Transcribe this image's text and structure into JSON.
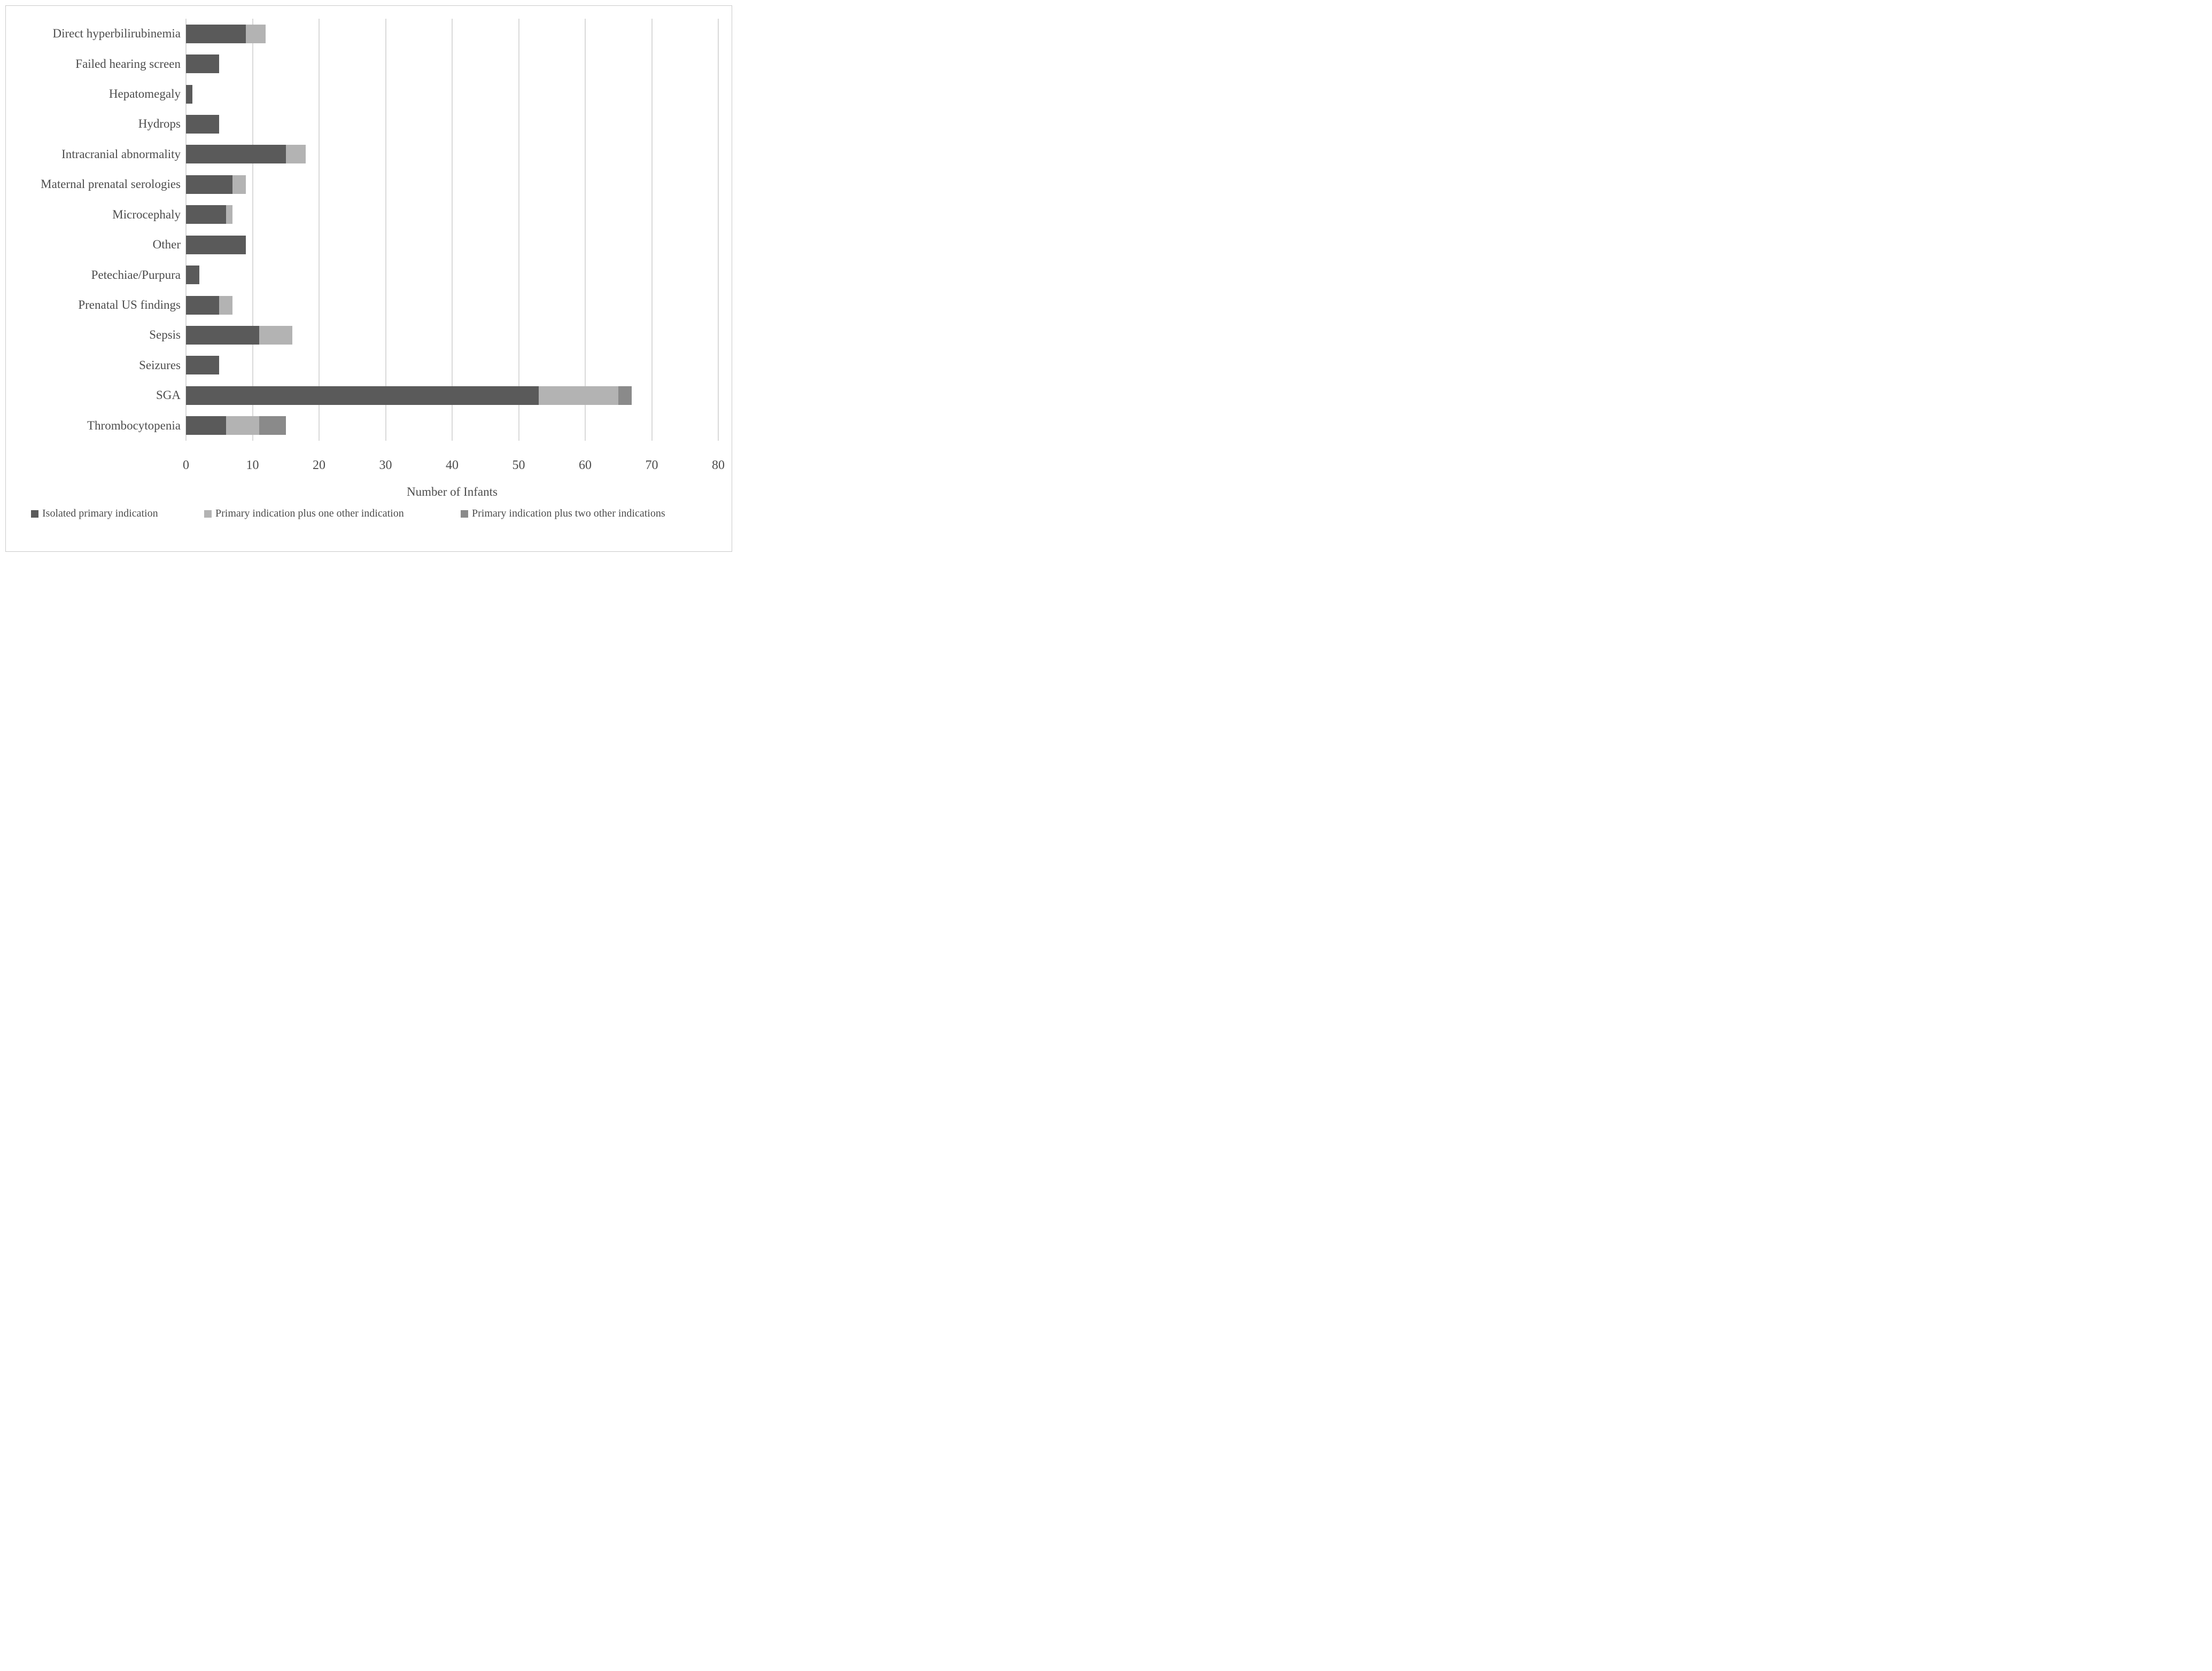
{
  "chart_data": {
    "type": "bar",
    "orientation": "horizontal",
    "stacked": true,
    "title": "",
    "xlabel": "Number of Infants",
    "ylabel": "",
    "xlim": [
      0,
      80
    ],
    "x_tick_step": 10,
    "x_ticks": [
      "0",
      "10",
      "20",
      "30",
      "40",
      "50",
      "60",
      "70",
      "80"
    ],
    "grid": "vertical",
    "legend_position": "bottom-left",
    "categories": [
      "Direct hyperbilirubinemia",
      "Failed hearing screen",
      "Hepatomegaly",
      "Hydrops",
      "Intracranial abnormality",
      "Maternal prenatal serologies",
      "Microcephaly",
      "Other",
      "Petechiae/Purpura",
      "Prenatal US findings",
      "Sepsis",
      "Seizures",
      "SGA",
      "Thrombocytopenia"
    ],
    "series": [
      {
        "name": "Isolated primary indication",
        "color": "#5a5a5a",
        "values": [
          9,
          5,
          1,
          5,
          15,
          7,
          6,
          9,
          2,
          5,
          11,
          5,
          53,
          6
        ]
      },
      {
        "name": "Primary indication plus one other indication",
        "color": "#b3b3b3",
        "values": [
          3,
          0,
          0,
          0,
          3,
          2,
          1,
          0,
          0,
          2,
          5,
          0,
          12,
          5
        ]
      },
      {
        "name": "Primary indication plus two other indications",
        "color": "#8a8a8a",
        "values": [
          0,
          0,
          0,
          0,
          0,
          0,
          0,
          0,
          0,
          0,
          0,
          0,
          2,
          4
        ]
      }
    ]
  },
  "colors": {
    "background": "#ffffff",
    "frame_border": "#c9c9c9",
    "gridline": "#d9d9d9",
    "text": "#4d4d4d"
  }
}
